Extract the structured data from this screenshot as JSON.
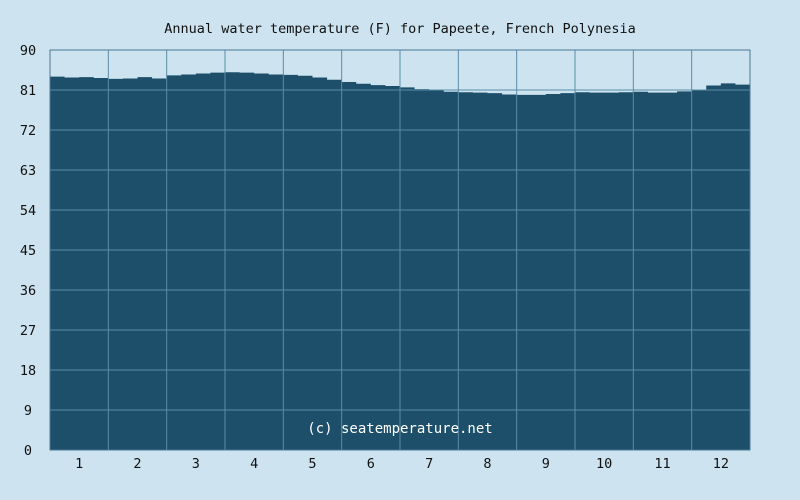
{
  "chart_data": {
    "type": "area",
    "title": "Annual water temperature (F) for Papeete, French Polynesia",
    "xlabel": "",
    "ylabel": "",
    "x_ticks": [
      "1",
      "2",
      "3",
      "4",
      "5",
      "6",
      "7",
      "8",
      "9",
      "10",
      "11",
      "12"
    ],
    "y_ticks": [
      "0",
      "9",
      "18",
      "27",
      "36",
      "45",
      "54",
      "63",
      "72",
      "81",
      "90"
    ],
    "ylim": [
      0,
      90
    ],
    "xlim": [
      0,
      12
    ],
    "grid": true,
    "watermark": "(c) seatemperature.net",
    "series": [
      {
        "x": [
          0.0,
          0.25,
          0.5,
          0.75,
          1.0,
          1.25,
          1.5,
          1.75,
          2.0,
          2.25,
          2.5,
          2.75,
          3.0,
          3.25,
          3.5,
          3.75,
          4.0,
          4.25,
          4.5,
          4.75,
          5.0,
          5.25,
          5.5,
          5.75,
          6.0,
          6.25,
          6.5,
          6.75,
          7.0,
          7.25,
          7.5,
          7.75,
          8.0,
          8.25,
          8.5,
          8.75,
          9.0,
          9.25,
          9.5,
          9.75,
          10.0,
          10.25,
          10.5,
          10.75,
          11.0,
          11.25,
          11.5,
          11.75,
          12.0
        ],
        "values": [
          84.0,
          83.8,
          83.9,
          83.7,
          83.5,
          83.6,
          83.9,
          83.6,
          84.3,
          84.5,
          84.7,
          84.9,
          85.0,
          84.9,
          84.7,
          84.5,
          84.4,
          84.2,
          83.8,
          83.3,
          82.8,
          82.4,
          82.1,
          81.9,
          81.6,
          81.2,
          80.9,
          80.6,
          80.5,
          80.4,
          80.3,
          80.0,
          79.9,
          79.9,
          80.1,
          80.3,
          80.5,
          80.4,
          80.4,
          80.5,
          80.6,
          80.4,
          80.4,
          80.7,
          81.0,
          82.0,
          82.5,
          82.2,
          82.7
        ]
      }
    ],
    "colors": {
      "background": "#cde3ef",
      "plot_fill": "#1d4f6b",
      "grid": "#5a8ca8",
      "frame": "#4c7a95"
    }
  }
}
